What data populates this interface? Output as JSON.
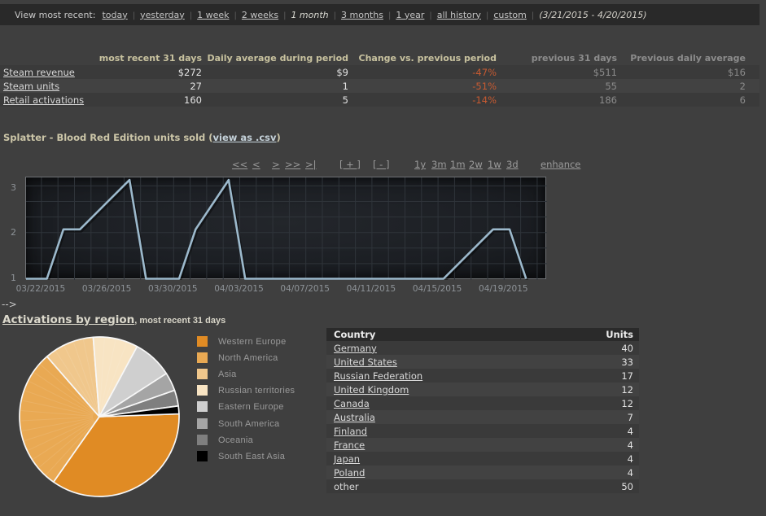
{
  "topbar": {
    "label": "View most recent:",
    "items": [
      {
        "label": "today",
        "selected": false
      },
      {
        "label": "yesterday",
        "selected": false
      },
      {
        "label": "1 week",
        "selected": false
      },
      {
        "label": "2 weeks",
        "selected": false
      },
      {
        "label": "1 month",
        "selected": true
      },
      {
        "label": "3 months",
        "selected": false
      },
      {
        "label": "1 year",
        "selected": false
      },
      {
        "label": "all history",
        "selected": false
      },
      {
        "label": "custom",
        "selected": false
      }
    ],
    "date_range": "(3/21/2015 - 4/20/2015)"
  },
  "summary_table": {
    "columns": [
      "",
      "most recent 31 days",
      "Daily average during period",
      "Change vs. previous period",
      "previous 31 days",
      "Previous daily average"
    ],
    "rows": [
      {
        "label": "Steam revenue",
        "recent": "$272",
        "daily_avg": "$9",
        "change": "-47%",
        "previous": "$511",
        "prev_daily_avg": "$16"
      },
      {
        "label": "Steam units",
        "recent": "27",
        "daily_avg": "1",
        "change": "-51%",
        "previous": "55",
        "prev_daily_avg": "2"
      },
      {
        "label": "Retail activations",
        "recent": "160",
        "daily_avg": "5",
        "change": "-14%",
        "previous": "186",
        "prev_daily_avg": "6"
      }
    ]
  },
  "chart_section": {
    "title_prefix": "Splatter - Blood Red Edition units sold (",
    "csv_link_label": "view as .csv",
    "title_suffix": ")",
    "nav_items": [
      "<<",
      "<",
      ">",
      ">>",
      ">|",
      "[ + ]",
      "[ - ]",
      "1y",
      "3m",
      "1m",
      "2w",
      "1w",
      "3d",
      "enhance"
    ]
  },
  "region_section": {
    "arrow_text": "-->",
    "title_link": "Activations by region",
    "title_rest": ", most recent 31 days"
  },
  "country_table": {
    "columns": [
      "Country",
      "Units"
    ],
    "rows": [
      {
        "country": "Germany",
        "units": "40",
        "link": true
      },
      {
        "country": "United States",
        "units": "33",
        "link": true
      },
      {
        "country": "Russian Federation",
        "units": "17",
        "link": true
      },
      {
        "country": "United Kingdom",
        "units": "12",
        "link": true
      },
      {
        "country": "Canada",
        "units": "12",
        "link": true
      },
      {
        "country": "Australia",
        "units": "7",
        "link": true
      },
      {
        "country": "Finland",
        "units": "4",
        "link": true
      },
      {
        "country": "France",
        "units": "4",
        "link": true
      },
      {
        "country": "Japan",
        "units": "4",
        "link": true
      },
      {
        "country": "Poland",
        "units": "4",
        "link": true
      },
      {
        "country": "other",
        "units": "50",
        "link": false
      }
    ]
  },
  "chart_data": [
    {
      "type": "line",
      "title": "Splatter - Blood Red Edition units sold",
      "x_start_date": "03/21/2015",
      "x_tick_labels": [
        "03/22/2015",
        "03/26/2015",
        "03/30/2015",
        "04/03/2015",
        "04/07/2015",
        "04/11/2015",
        "04/15/2015",
        "04/19/2015"
      ],
      "x_tick_days": [
        1,
        5,
        9,
        13,
        17,
        21,
        25,
        29
      ],
      "y_ticks": [
        1,
        2,
        3
      ],
      "ylim": [
        1,
        3.25
      ],
      "points_day_value": [
        [
          0,
          1
        ],
        [
          1,
          1
        ],
        [
          2,
          2.1
        ],
        [
          3,
          2.1
        ],
        [
          6,
          3.2
        ],
        [
          7,
          1
        ],
        [
          9,
          1
        ],
        [
          10,
          2.1
        ],
        [
          12,
          3.2
        ],
        [
          13,
          1
        ],
        [
          25,
          1
        ],
        [
          28,
          2.1
        ],
        [
          29,
          2.1
        ],
        [
          30,
          1
        ]
      ],
      "line_color": "#9cb9cc",
      "grid": true
    },
    {
      "type": "pie",
      "title": "Activations by region, most recent 31 days",
      "start_angle_deg": 2,
      "slices": [
        {
          "label": "Western Europe",
          "value": 66,
          "color": "#e08b24",
          "banded": false
        },
        {
          "label": "North America",
          "value": 54,
          "color": "#e9a953",
          "banded": true
        },
        {
          "label": "Asia",
          "value": 19,
          "color": "#f0c78c",
          "banded": true
        },
        {
          "label": "Russian territories",
          "value": 17,
          "color": "#f8e4c3",
          "banded": true
        },
        {
          "label": "Eastern Europe",
          "value": 15,
          "color": "#cfcfcf",
          "banded": false
        },
        {
          "label": "South America",
          "value": 7,
          "color": "#a5a5a5",
          "banded": false
        },
        {
          "label": "Oceania",
          "value": 6,
          "color": "#7f7f7f",
          "banded": false
        },
        {
          "label": "South East Asia",
          "value": 3,
          "color": "#000000",
          "banded": false
        }
      ],
      "legend_position": "right"
    }
  ]
}
